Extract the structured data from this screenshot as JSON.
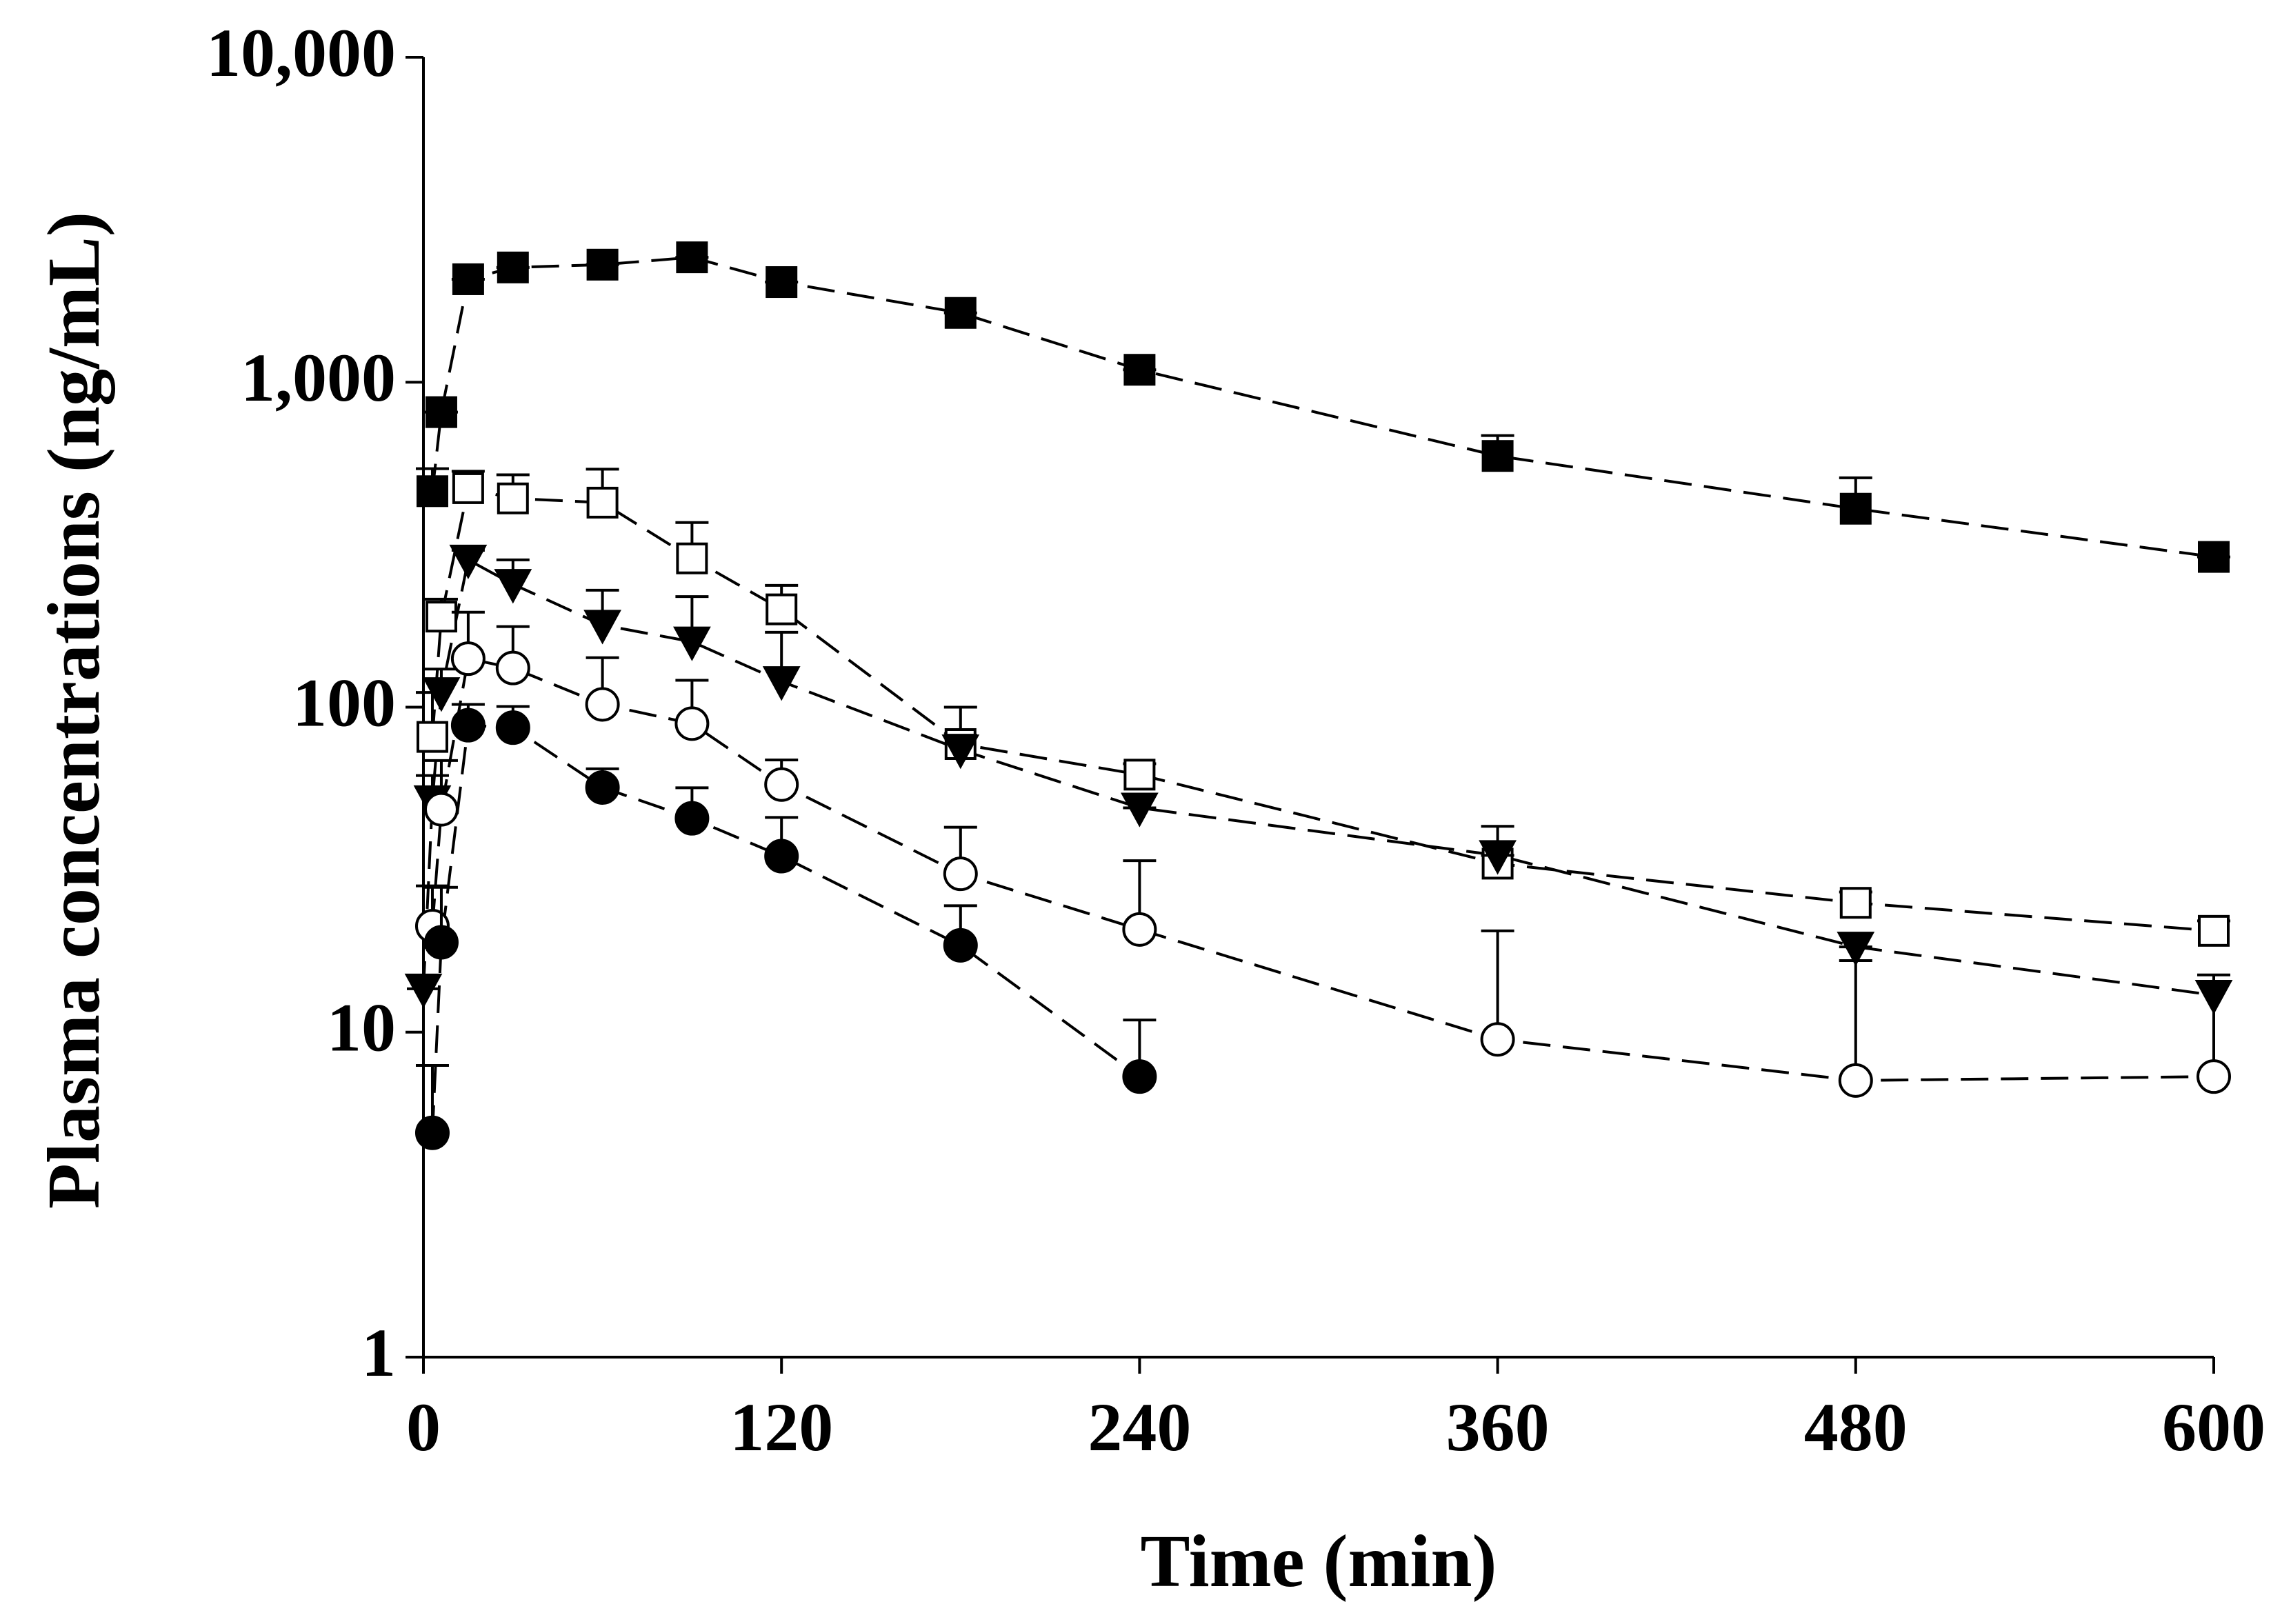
{
  "chart_data": {
    "type": "line",
    "x_label": "Time (min)",
    "y_label": "Plasma concentrations (ng/mL)",
    "log_y": true,
    "grid": false,
    "line_style": "dashed",
    "xlim": [
      0,
      600
    ],
    "xticks": [
      0,
      120,
      240,
      360,
      480,
      600
    ],
    "ylim": [
      1,
      10000
    ],
    "yticks": [
      1,
      10,
      100,
      {
        "value": 1000,
        "label": "1,000"
      },
      {
        "value": 10000,
        "label": "10,000"
      }
    ],
    "series": [
      {
        "marker": "square",
        "filled": true,
        "color": "#000000",
        "x": [
          3,
          6,
          15,
          30,
          60,
          90,
          120,
          180,
          240,
          360,
          480,
          600
        ],
        "values": [
          462,
          809,
          2074,
          2255,
          2300,
          2423,
          2033,
          1634,
          1092,
          593,
          408,
          290
        ],
        "errors": [
          80,
          0,
          0,
          0,
          0,
          0,
          0,
          0,
          0,
          92,
          100,
          0
        ]
      },
      {
        "marker": "square",
        "filled": false,
        "color": "#000000",
        "x": [
          3,
          6,
          15,
          30,
          60,
          90,
          120,
          180,
          240,
          360,
          480,
          600
        ],
        "values": [
          81,
          190,
          472,
          439,
          426,
          287,
          200,
          77,
          62,
          33,
          25,
          20.5
        ],
        "errors": [
          30,
          25,
          60,
          80,
          114,
          83,
          37,
          23,
          5,
          10,
          2,
          1.5
        ]
      },
      {
        "marker": "triangle-down",
        "filled": true,
        "color": "#000000",
        "x": [
          0,
          3,
          6,
          15,
          30,
          60,
          90,
          120,
          180,
          240,
          360,
          480,
          600
        ],
        "values": [
          13.6,
          51.6,
          111,
          284,
          239,
          179,
          159,
          120,
          74,
          49,
          35,
          18.3,
          13
        ],
        "errors": [
          0,
          10,
          20,
          20,
          45,
          50,
          60,
          50,
          8,
          0,
          0,
          0,
          2
        ]
      },
      {
        "marker": "circle",
        "filled": false,
        "color": "#000000",
        "x": [
          3,
          6,
          15,
          30,
          60,
          90,
          120,
          180,
          240,
          360,
          480,
          600
        ],
        "values": [
          21.2,
          48.5,
          141,
          132,
          102,
          89,
          57.8,
          30.7,
          20.7,
          9.5,
          7.1,
          7.3
        ],
        "errors": [
          7,
          20,
          55,
          45,
          40,
          32,
          11,
          12,
          13,
          11,
          9.5,
          7
        ]
      },
      {
        "marker": "circle",
        "filled": true,
        "color": "#000000",
        "x": [
          3,
          6,
          15,
          30,
          60,
          90,
          120,
          180,
          240
        ],
        "values": [
          4.9,
          18.9,
          88,
          86.5,
          56.6,
          45.5,
          34.8,
          18.5,
          7.3
        ],
        "errors": [
          3,
          9,
          14,
          14,
          8,
          11,
          11,
          6,
          3.6
        ]
      }
    ]
  }
}
